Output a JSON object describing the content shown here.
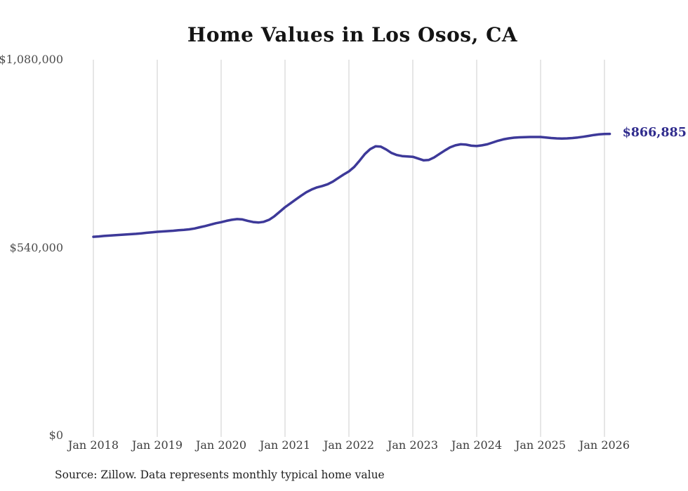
{
  "title": "Home Values in Los Osos, CA",
  "source": "Source: Zillow. Data represents monthly typical home value",
  "colors": {
    "background": "#ffffff",
    "line": "#3d3999",
    "end_label": "#2f2b8d",
    "gridline": "#cecece",
    "title_text": "#141414",
    "ytick_text": "#4d4d4d",
    "xtick_text": "#3d3d3d",
    "source_text": "#1f1f1f"
  },
  "chart_data": {
    "type": "line",
    "title": "Home Values in Los Osos, CA",
    "xlabel": "",
    "ylabel": "",
    "ylim": [
      0,
      1080000
    ],
    "ytick_values": [
      0,
      540000,
      1080000
    ],
    "ytick_labels": [
      "$0",
      "$540,000",
      "$1,080,000"
    ],
    "xtick_labels": [
      "Jan 2018",
      "Jan 2019",
      "Jan 2020",
      "Jan 2021",
      "Jan 2022",
      "Jan 2023",
      "Jan 2024",
      "Jan 2025",
      "Jan 2026"
    ],
    "grid": "vertical-only",
    "legend": "none",
    "end_label": "$866,885",
    "latest_value": 866885,
    "series": [
      {
        "name": "Monthly typical home value",
        "x_start": "2018-01",
        "x_interval": "monthly",
        "values": [
          571000,
          572000,
          573500,
          574500,
          575500,
          576500,
          577500,
          578500,
          579500,
          581000,
          582500,
          584000,
          585500,
          586500,
          587500,
          588500,
          590000,
          591000,
          592500,
          595000,
          598500,
          602000,
          606000,
          610000,
          613000,
          617000,
          620000,
          622000,
          621000,
          617000,
          613500,
          612000,
          614000,
          620000,
          630000,
          643000,
          656000,
          667000,
          678000,
          689000,
          699000,
          707000,
          713000,
          717000,
          722000,
          730000,
          740000,
          750000,
          759000,
          772000,
          790000,
          809000,
          823000,
          831000,
          830000,
          822000,
          812000,
          806000,
          803000,
          802000,
          801000,
          796000,
          791000,
          792000,
          799000,
          809000,
          819000,
          828000,
          834000,
          837000,
          836000,
          833000,
          832000,
          834000,
          837000,
          842000,
          847000,
          851000,
          854000,
          856000,
          857000,
          857500,
          858000,
          858000,
          858000,
          856500,
          855000,
          854000,
          853500,
          854000,
          855000,
          856500,
          858500,
          861000,
          863500,
          865500,
          866500,
          866885
        ]
      }
    ]
  }
}
